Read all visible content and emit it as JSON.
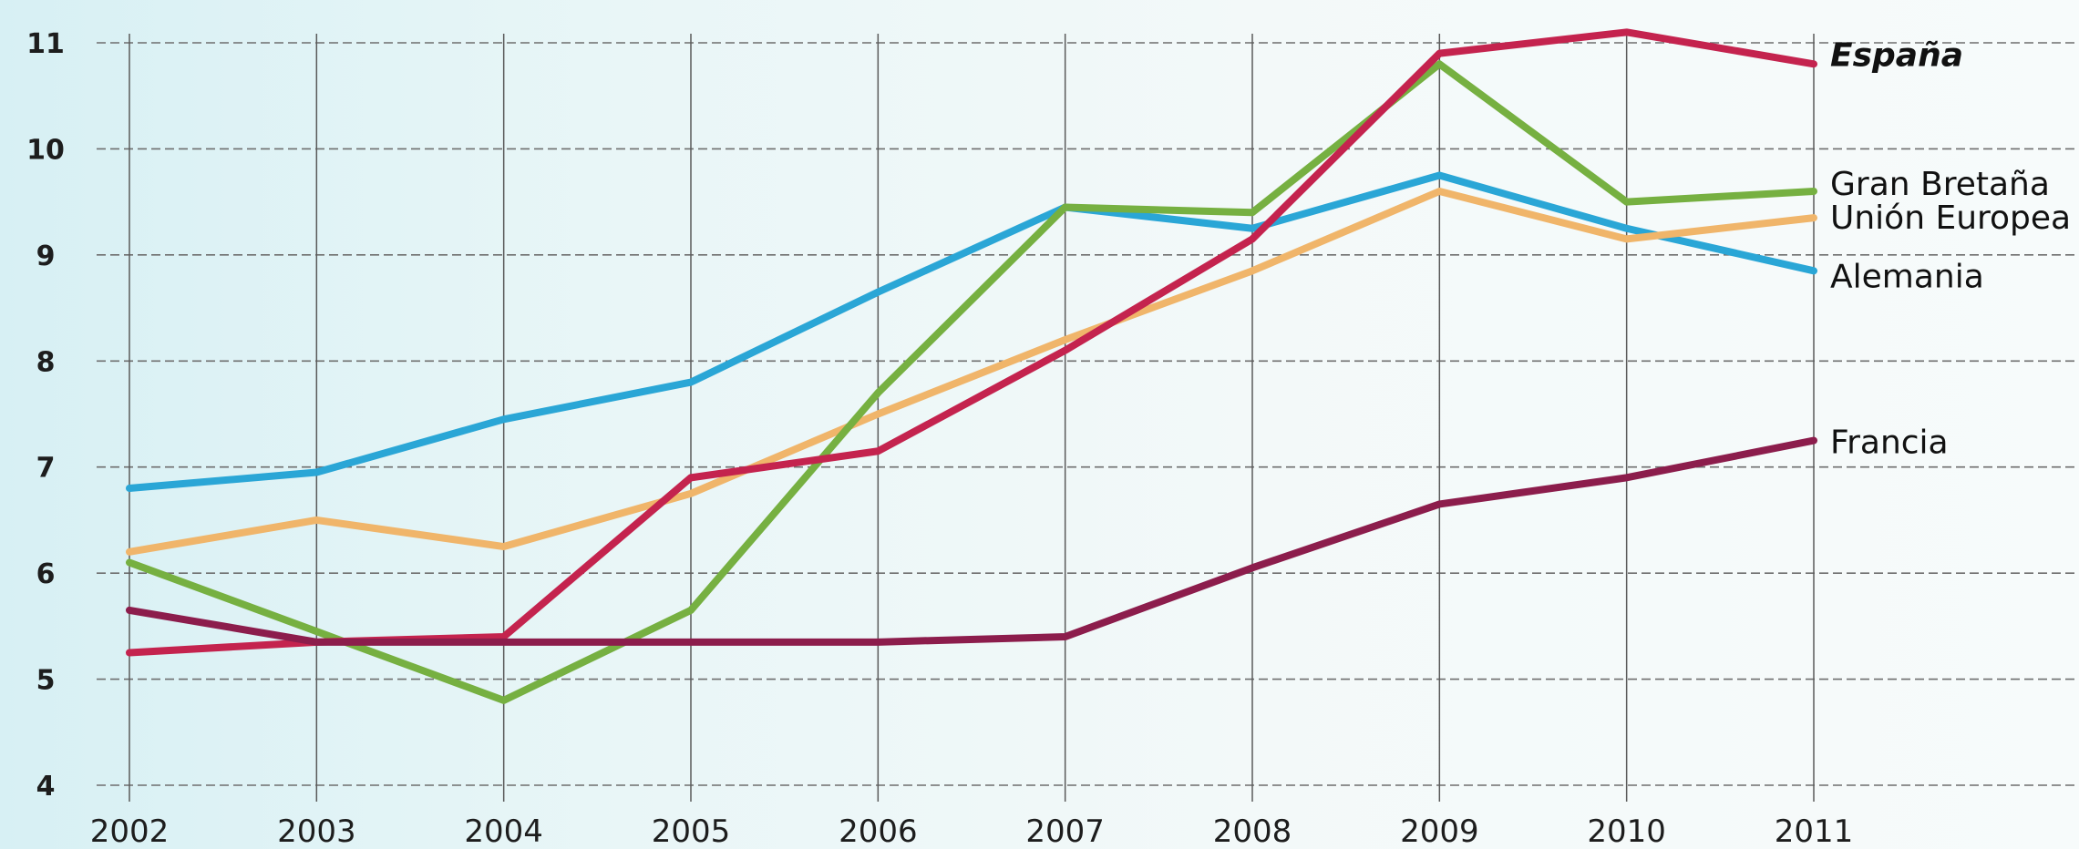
{
  "chart_data": {
    "type": "line",
    "title": "",
    "xlabel": "",
    "ylabel": "",
    "x": [
      2002,
      2003,
      2004,
      2005,
      2006,
      2007,
      2008,
      2009,
      2010,
      2011
    ],
    "xticks": [
      "2002",
      "2003",
      "2004",
      "2005",
      "2006",
      "2007",
      "2008",
      "2009",
      "2010",
      "2011"
    ],
    "yticks": [
      "4",
      "5",
      "6",
      "7",
      "8",
      "9",
      "10",
      "11"
    ],
    "ylim": [
      4,
      11
    ],
    "grid": true,
    "legend": "inline-right",
    "series": [
      {
        "name": "Alemania",
        "color": "#2aa6d6",
        "values": [
          6.8,
          6.95,
          7.45,
          7.8,
          8.65,
          9.45,
          9.25,
          9.75,
          9.25,
          8.85
        ]
      },
      {
        "name": "Unión Europea",
        "color": "#f0b56a",
        "values": [
          6.2,
          6.5,
          6.25,
          6.75,
          7.5,
          8.2,
          8.85,
          9.6,
          9.15,
          9.35
        ]
      },
      {
        "name": "Gran Bretaña",
        "color": "#76b041",
        "values": [
          6.1,
          5.45,
          4.8,
          5.65,
          7.7,
          9.45,
          9.4,
          10.8,
          9.5,
          9.6
        ]
      },
      {
        "name": "España",
        "color": "#c4234e",
        "label_style": "bold-italic",
        "values": [
          5.25,
          5.35,
          5.4,
          6.9,
          7.15,
          8.1,
          9.15,
          10.9,
          11.1,
          10.8
        ]
      },
      {
        "name": "Francia",
        "color": "#8c1d4c",
        "values": [
          5.65,
          5.35,
          5.35,
          5.35,
          5.35,
          5.4,
          6.05,
          6.65,
          6.9,
          7.25
        ]
      }
    ]
  }
}
